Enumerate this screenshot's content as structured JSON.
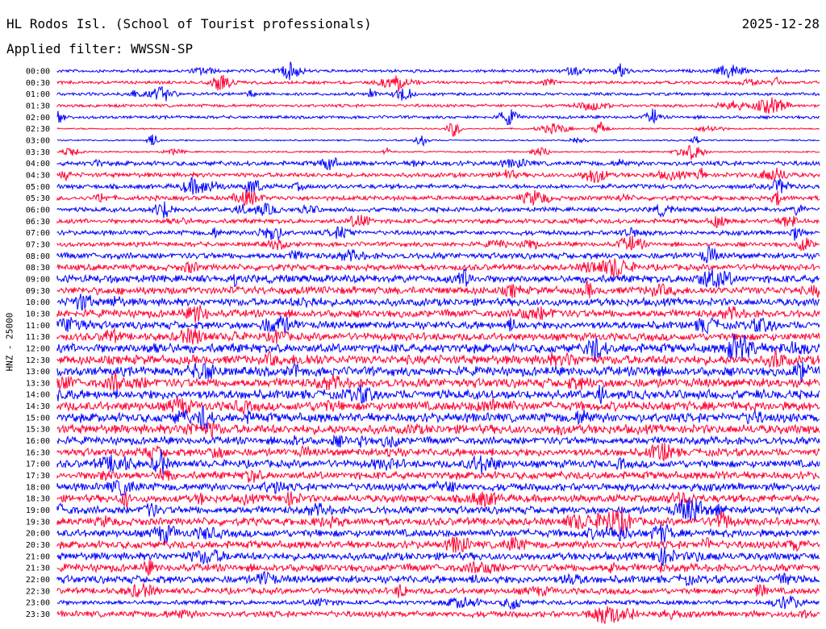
{
  "header": {
    "station": "HL Rodos Isl. (School of Tourist professionals)",
    "date": "2025-12-28",
    "filter": "Applied filter: WWSSN-SP"
  },
  "chart_data": {
    "type": "line",
    "title": "HL Rodos Isl. (School of Tourist professionals)",
    "subtitle": "Applied filter: WWSSN-SP",
    "ylabel": "HNZ - 25000",
    "xlabel": "",
    "y_tick_labels": [
      "00:00",
      "00:30",
      "01:00",
      "01:30",
      "02:00",
      "02:30",
      "03:00",
      "03:30",
      "04:00",
      "04:30",
      "05:00",
      "05:30",
      "06:00",
      "06:30",
      "07:00",
      "07:30",
      "08:00",
      "08:30",
      "09:00",
      "09:30",
      "10:00",
      "10:30",
      "11:00",
      "11:30",
      "12:00",
      "12:30",
      "13:00",
      "13:30",
      "14:00",
      "14:30",
      "15:00",
      "15:30",
      "16:00",
      "16:30",
      "17:00",
      "17:30",
      "18:00",
      "18:30",
      "19:00",
      "19:30",
      "20:00",
      "20:30",
      "21:00",
      "21:30",
      "22:00",
      "22:30",
      "23:00",
      "23:30"
    ],
    "trace_colors": [
      "#0000ff",
      "#ff0033"
    ],
    "row_amplitude": [
      2,
      2,
      2,
      2,
      2,
      1,
      1,
      1,
      3,
      3,
      3,
      3,
      3,
      3,
      3,
      3,
      4,
      4,
      5,
      5,
      5,
      5,
      5,
      5,
      6,
      6,
      6,
      6,
      6,
      6,
      6,
      6,
      5,
      5,
      5,
      5,
      5,
      5,
      5,
      5,
      5,
      5,
      5,
      5,
      5,
      4,
      3,
      4
    ],
    "grid": false,
    "legend": "none"
  }
}
